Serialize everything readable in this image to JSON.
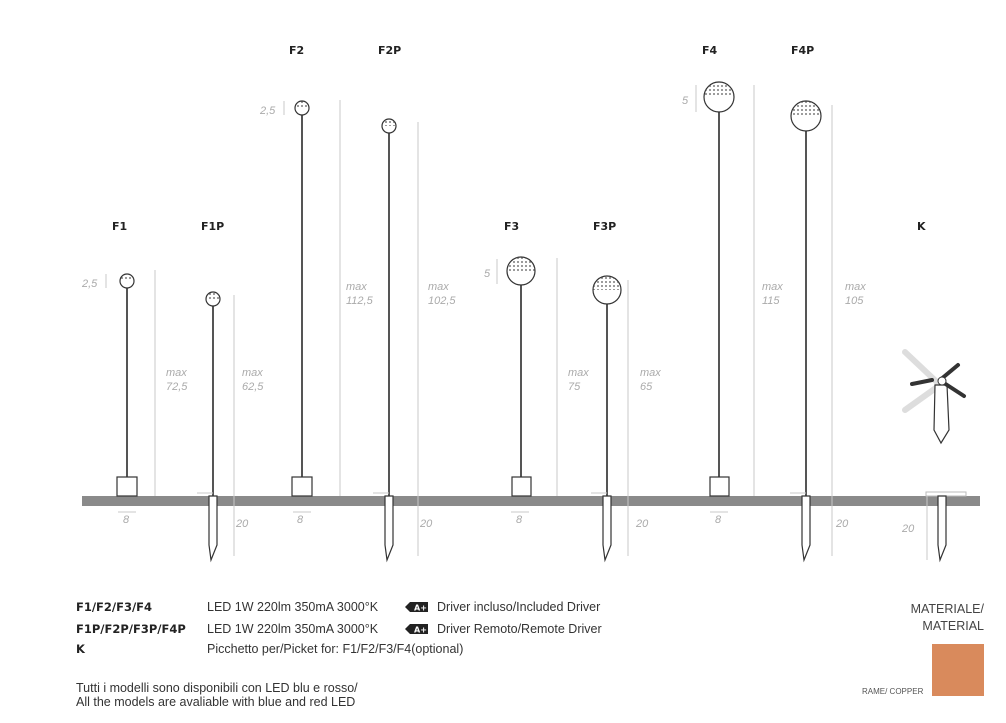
{
  "models": {
    "F1": {
      "label": "F1",
      "height_value": "72,5",
      "head": "2,5",
      "base": "8"
    },
    "F1P": {
      "label": "F1P",
      "height_value": "62,5",
      "spike": "20"
    },
    "F2": {
      "label": "F2",
      "height_value": "112,5",
      "head": "2,5",
      "base": "8"
    },
    "F2P": {
      "label": "F2P",
      "height_value": "102,5",
      "spike": "20"
    },
    "F3": {
      "label": "F3",
      "height_value": "75",
      "head": "5",
      "base": "8"
    },
    "F3P": {
      "label": "F3P",
      "height_value": "65",
      "spike": "20"
    },
    "F4": {
      "label": "F4",
      "height_value": "115",
      "head": "5",
      "base": "8"
    },
    "F4P": {
      "label": "F4P",
      "height_value": "105",
      "spike": "20"
    },
    "K": {
      "label": "K",
      "spike": "20"
    }
  },
  "max_word": "max",
  "specs": [
    {
      "code": "F1/F2/F3/F4",
      "desc": "LED 1W 220lm 350mA 3000°K",
      "badge": "A+",
      "driver": "Driver incluso/Included Driver"
    },
    {
      "code": "F1P/F2P/F3P/F4P",
      "desc": "LED 1W 220lm 350mA 3000°K",
      "badge": "A+",
      "driver": "Driver Remoto/Remote Driver"
    },
    {
      "code": "K",
      "desc": "Picchetto per/Picket for: F1/F2/F3/F4(optional)"
    }
  ],
  "note": [
    "Tutti i modelli sono disponibili con LED blu e rosso/",
    "All the models are avaliable with blue and red LED"
  ],
  "material": {
    "title_1": "MATERIALE/",
    "title_2": "MATERIAL",
    "swatch_label": "RAME/ COPPER",
    "swatch_color": "#d98a5c"
  },
  "colors": {
    "ground": "#8a8a8a"
  }
}
